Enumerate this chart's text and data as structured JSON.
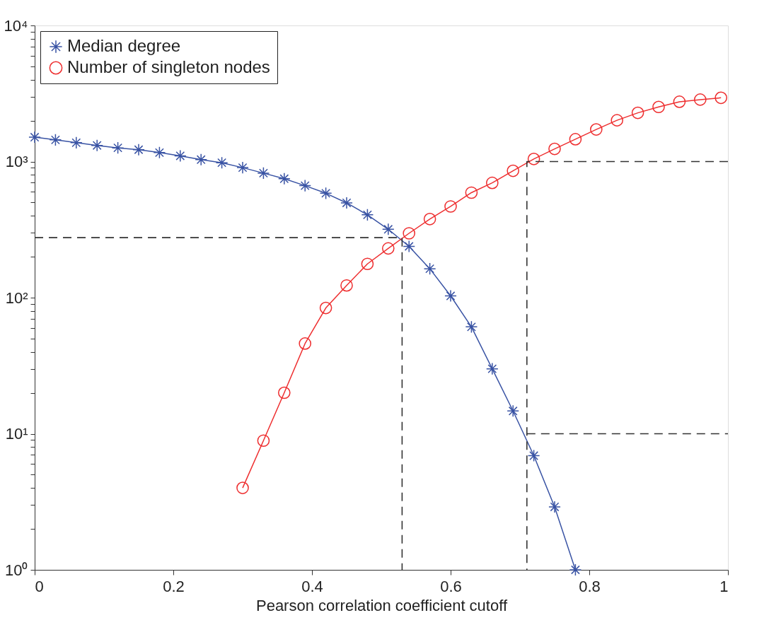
{
  "chart_data": {
    "type": "line",
    "xlabel": "Pearson correlation coefficient cutoff",
    "xlim": [
      0,
      1
    ],
    "xticks": [
      0,
      0.2,
      0.4,
      0.6,
      0.8,
      1
    ],
    "ylim": [
      1,
      10000
    ],
    "log": true,
    "grid": false,
    "legend": "top left",
    "yticks": [
      {
        "value": 1,
        "label": "10⁰"
      },
      {
        "value": 2,
        "label": null
      },
      {
        "value": 3,
        "label": null
      },
      {
        "value": 4,
        "label": null
      },
      {
        "value": 5,
        "label": null
      },
      {
        "value": 6,
        "label": null
      },
      {
        "value": 7,
        "label": null
      },
      {
        "value": 8,
        "label": null
      },
      {
        "value": 9,
        "label": null
      },
      {
        "value": 10,
        "label": "10¹"
      },
      {
        "value": 20,
        "label": null
      },
      {
        "value": 30,
        "label": null
      },
      {
        "value": 40,
        "label": null
      },
      {
        "value": 50,
        "label": null
      },
      {
        "value": 60,
        "label": null
      },
      {
        "value": 70,
        "label": null
      },
      {
        "value": 80,
        "label": null
      },
      {
        "value": 90,
        "label": null
      },
      {
        "value": 100,
        "label": "10²"
      },
      {
        "value": 200,
        "label": null
      },
      {
        "value": 300,
        "label": null
      },
      {
        "value": 400,
        "label": null
      },
      {
        "value": 500,
        "label": null
      },
      {
        "value": 600,
        "label": null
      },
      {
        "value": 700,
        "label": null
      },
      {
        "value": 800,
        "label": null
      },
      {
        "value": 900,
        "label": null
      },
      {
        "value": 1000,
        "label": "10³"
      },
      {
        "value": 2000,
        "label": null
      },
      {
        "value": 3000,
        "label": null
      },
      {
        "value": 4000,
        "label": null
      },
      {
        "value": 5000,
        "label": null
      },
      {
        "value": 6000,
        "label": null
      },
      {
        "value": 7000,
        "label": null
      },
      {
        "value": 8000,
        "label": null
      },
      {
        "value": 9000,
        "label": null
      },
      {
        "value": 10000,
        "label": "10⁴"
      }
    ],
    "series": [
      {
        "name": "Median degree",
        "color": "#3953a4",
        "marker": "cross",
        "line_style": "solid",
        "x": [
          0,
          0.03,
          0.06,
          0.09,
          0.12,
          0.15,
          0.18,
          0.21,
          0.24,
          0.27,
          0.3,
          0.33,
          0.36,
          0.39,
          0.42,
          0.45,
          0.48,
          0.51,
          0.54,
          0.57,
          0.6,
          0.63,
          0.66,
          0.69,
          0.72,
          0.75,
          0.78
        ],
        "values": [
          1510,
          1443,
          1376,
          1313,
          1260,
          1222,
          1164,
          1101,
          1033,
          980,
          902,
          822,
          748,
          665,
          585,
          497,
          406,
          318,
          238,
          163,
          103,
          61,
          30,
          14.7,
          6.9,
          2.9,
          1
        ]
      },
      {
        "name": "Number of singleton nodes",
        "color": "#ee2e2f",
        "marker": "circle",
        "line_style": "solid",
        "x": [
          0.3,
          0.33,
          0.36,
          0.39,
          0.42,
          0.45,
          0.48,
          0.51,
          0.54,
          0.57,
          0.6,
          0.63,
          0.66,
          0.69,
          0.72,
          0.75,
          0.78,
          0.81,
          0.84,
          0.87,
          0.9,
          0.93,
          0.96,
          0.99
        ],
        "values": [
          4,
          8.9,
          20,
          46,
          84,
          123,
          177,
          230,
          297,
          378,
          468,
          591,
          697,
          855,
          1045,
          1239,
          1459,
          1722,
          2010,
          2280,
          2518,
          2750,
          2852,
          2940
        ]
      },
      {
        "type": "line",
        "color": "#333333",
        "marker": "none",
        "line_style": "dashed",
        "x": [
          0,
          0.53,
          0.53
        ],
        "values": [
          276,
          276,
          1
        ]
      },
      {
        "type": "line",
        "color": "#333333",
        "marker": "none",
        "line_style": "dashed",
        "x": [
          1,
          0.71,
          0.71
        ],
        "values": [
          1000,
          1000,
          1
        ]
      },
      {
        "type": "line",
        "color": "#333333",
        "marker": "none",
        "line_style": "dashed",
        "x": [
          0.71,
          1
        ],
        "values": [
          10,
          10
        ]
      }
    ]
  }
}
